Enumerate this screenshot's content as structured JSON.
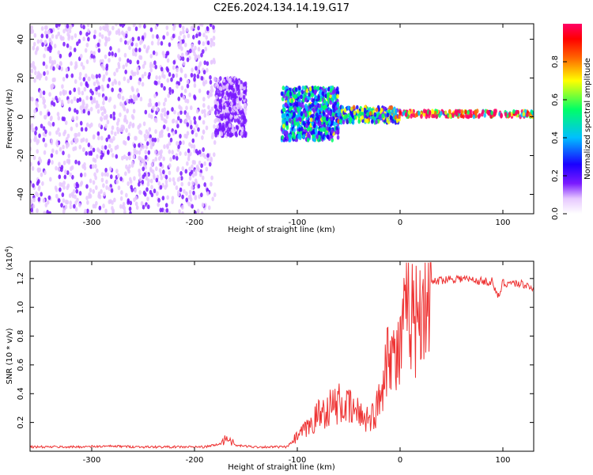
{
  "title": "C2E6.2024.134.14.19.G17",
  "chart_data": [
    {
      "type": "heatmap",
      "xlabel": "Height of straight line (km)",
      "ylabel": "Frequency (Hz)",
      "xlim": [
        -360,
        130
      ],
      "ylim": [
        -50,
        48
      ],
      "x_ticks": [
        -300,
        -200,
        -100,
        0,
        100
      ],
      "y_ticks": [
        -40,
        -20,
        0,
        20,
        40
      ],
      "grid": false,
      "colorbar": {
        "label": "Normalized spectral amplitude",
        "range": [
          0.0,
          1.0
        ],
        "ticks": [
          0.0,
          0.2,
          0.4,
          0.6,
          0.8
        ],
        "colors": [
          "#ffffff",
          "#e6c8ff",
          "#7a1aff",
          "#1a00ff",
          "#00bfff",
          "#00ff66",
          "#ffff00",
          "#ff6600",
          "#ff0000",
          "#ff0066"
        ]
      },
      "regions": [
        {
          "x": [
            -360,
            -180
          ],
          "freq": [
            -50,
            48
          ],
          "amplitude": 0.15,
          "note": "scattered noise"
        },
        {
          "x": [
            -180,
            -150
          ],
          "freq": [
            -10,
            20
          ],
          "amplitude": 0.2
        },
        {
          "x": [
            -115,
            -60
          ],
          "freq": [
            -12,
            15
          ],
          "amplitude": 0.45
        },
        {
          "x": [
            -60,
            0
          ],
          "freq": [
            -3,
            5
          ],
          "amplitude": 0.55
        },
        {
          "x": [
            0,
            130
          ],
          "freq": [
            0,
            3
          ],
          "amplitude": 0.9
        }
      ]
    },
    {
      "type": "line",
      "xlabel": "Height of straight line (km)",
      "ylabel": "SNR (10 * v/v)",
      "y_scale_label": "(x10",
      "y_scale_exp": "4",
      "y_scale_close": ")",
      "xlim": [
        -360,
        130
      ],
      "ylim": [
        0,
        1.32
      ],
      "x_ticks": [
        -300,
        -200,
        -100,
        0,
        100
      ],
      "y_ticks": [
        0.2,
        0.4,
        0.6,
        0.8,
        1.0,
        1.2
      ],
      "color": "#ee3333",
      "x": [
        -360,
        -320,
        -280,
        -250,
        -220,
        -190,
        -175,
        -168,
        -160,
        -140,
        -120,
        -110,
        -100,
        -90,
        -80,
        -70,
        -60,
        -50,
        -40,
        -30,
        -25,
        -20,
        -15,
        -10,
        -5,
        0,
        5,
        10,
        15,
        20,
        25,
        30,
        40,
        50,
        60,
        70,
        80,
        90,
        95,
        100,
        110,
        120,
        130
      ],
      "y": [
        0.03,
        0.03,
        0.035,
        0.03,
        0.03,
        0.03,
        0.05,
        0.1,
        0.04,
        0.03,
        0.03,
        0.03,
        0.1,
        0.16,
        0.25,
        0.3,
        0.33,
        0.3,
        0.26,
        0.23,
        0.25,
        0.35,
        0.6,
        0.78,
        0.62,
        0.7,
        0.9,
        1.02,
        0.9,
        1.05,
        1.12,
        1.17,
        1.19,
        1.2,
        1.2,
        1.19,
        1.18,
        1.18,
        1.06,
        1.17,
        1.17,
        1.16,
        1.14
      ]
    }
  ]
}
